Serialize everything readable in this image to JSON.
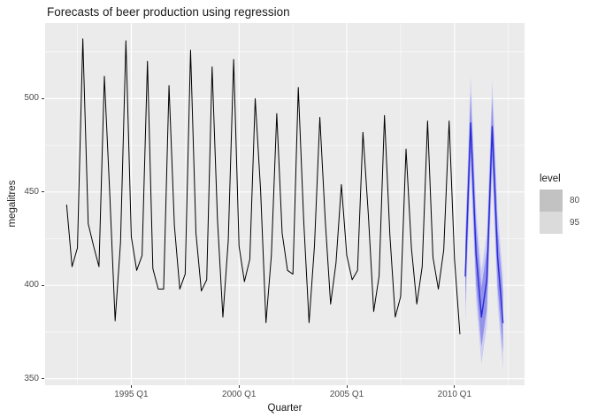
{
  "title": "Forecasts of beer production using regression",
  "axes": {
    "x": {
      "label": "Quarter",
      "lim": [
        1991.0,
        2013.25
      ],
      "major_ticks": [
        {
          "value": 1995,
          "label": "1995 Q1"
        },
        {
          "value": 2000,
          "label": "2000 Q1"
        },
        {
          "value": 2005,
          "label": "2005 Q1"
        },
        {
          "value": 2010,
          "label": "2010 Q1"
        }
      ],
      "minor_ticks": [
        1992.5,
        1997.5,
        2002.5,
        2007.5,
        2012.5
      ]
    },
    "y": {
      "label": "megalitres",
      "lim": [
        346.5,
        540.5
      ],
      "major_ticks": [
        {
          "value": 350,
          "label": "350"
        },
        {
          "value": 400,
          "label": "400"
        },
        {
          "value": 450,
          "label": "450"
        },
        {
          "value": 500,
          "label": "500"
        }
      ],
      "minor_ticks": [
        375,
        425,
        475,
        525
      ]
    }
  },
  "legend": {
    "title": "level",
    "entries": [
      {
        "label": "80",
        "swatch_color": "#C2C2C2"
      },
      {
        "label": "95",
        "swatch_color": "#DBDBDB"
      }
    ]
  },
  "colors": {
    "panel_background": "#EBEBEB",
    "gridline": "#FFFFFF",
    "observed_line": "#000000",
    "forecast_line": "#2A2AD9",
    "band_80": "#9393EA",
    "band_95": "#CDCDF4",
    "tick_mark": "#333333",
    "tick_text": "#4D4D4D"
  },
  "chart_data": {
    "type": "line",
    "title": "Forecasts of beer production using regression",
    "xlabel": "Quarter",
    "ylabel": "megalitres",
    "xlim": [
      1991.0,
      2013.25
    ],
    "ylim": [
      346.5,
      540.5
    ],
    "grid": "on",
    "legend_position": "right",
    "series": [
      {
        "name": "observed",
        "color": "#000000",
        "start": 1992.0,
        "step": 0.25,
        "values": [
          443,
          410,
          420,
          532,
          433,
          421,
          410,
          512,
          449,
          381,
          423,
          531,
          426,
          408,
          416,
          520,
          409,
          398,
          398,
          507,
          432,
          398,
          406,
          526,
          428,
          397,
          403,
          517,
          435,
          383,
          424,
          521,
          421,
          402,
          414,
          500,
          451,
          380,
          416,
          492,
          428,
          408,
          406,
          506,
          435,
          380,
          421,
          490,
          435,
          390,
          412,
          454,
          416,
          403,
          408,
          482,
          438,
          386,
          405,
          491,
          427,
          383,
          394,
          473,
          420,
          390,
          410,
          488,
          415,
          398,
          419,
          488,
          414,
          374
        ]
      },
      {
        "name": "forecast-mean",
        "color": "#2A2AD9",
        "start": 2010.5,
        "step": 0.25,
        "values": [
          405,
          487,
          417,
          383,
          403,
          485,
          415,
          380
        ]
      }
    ],
    "intervals": [
      {
        "level": 95,
        "fill": "#CDCDF4",
        "start": 2010.5,
        "step": 0.25,
        "lower": [
          380,
          462,
          392,
          358,
          378,
          460,
          390,
          355
        ],
        "upper": [
          429,
          512,
          442,
          408,
          428,
          510,
          440,
          405
        ]
      },
      {
        "level": 80,
        "fill": "#9393EA",
        "start": 2010.5,
        "step": 0.25,
        "lower": [
          389,
          471,
          401,
          367,
          387,
          469,
          399,
          364
        ],
        "upper": [
          421,
          503,
          433,
          399,
          419,
          501,
          431,
          396
        ]
      }
    ]
  }
}
